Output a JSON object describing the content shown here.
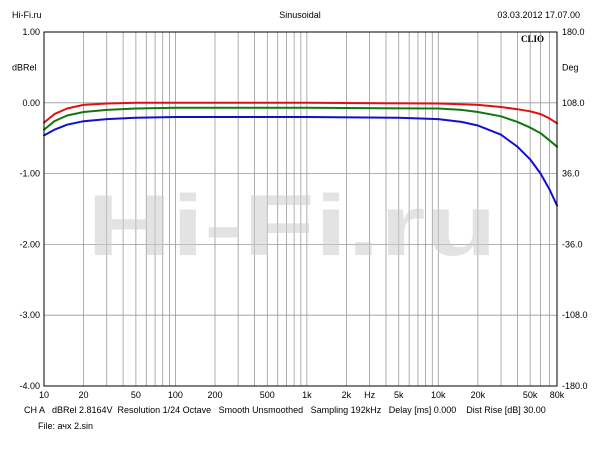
{
  "header": {
    "left": "Hi-Fi.ru",
    "center": "Sinusoidal",
    "right": "03.03.2012 17.07.00"
  },
  "brand": "CLIO",
  "footer": {
    "line1": "CH A   dBRel 2.8164V  Resolution 1/24 Octave   Smooth Unsmoothed   Sampling 192kHz   Delay [ms] 0.000    Dist Rise [dB] 30.00",
    "line2": "File: ачх 2.sin"
  },
  "watermark": "Hi-Fi.ru",
  "chart_data": {
    "type": "line",
    "x_scale": "log",
    "xlim": [
      10,
      80000
    ],
    "ylim": [
      -4.0,
      1.0
    ],
    "y2lim": [
      -180.0,
      180.0
    ],
    "ylabel": "dBRel",
    "y2label": "Deg",
    "xlabel": "Hz",
    "grid": true,
    "x_ticks": [
      {
        "v": 10,
        "label": "10"
      },
      {
        "v": 20,
        "label": "20"
      },
      {
        "v": 50,
        "label": "50"
      },
      {
        "v": 100,
        "label": "100"
      },
      {
        "v": 200,
        "label": "200"
      },
      {
        "v": 500,
        "label": "500"
      },
      {
        "v": 1000,
        "label": "1k"
      },
      {
        "v": 2000,
        "label": "2k"
      },
      {
        "v": 3000,
        "label": "Hz"
      },
      {
        "v": 5000,
        "label": "5k"
      },
      {
        "v": 10000,
        "label": "10k"
      },
      {
        "v": 20000,
        "label": "20k"
      },
      {
        "v": 50000,
        "label": "50k"
      },
      {
        "v": 80000,
        "label": "80k"
      }
    ],
    "y_ticks": [
      {
        "v": 1.0,
        "label": "1.00"
      },
      {
        "v": 0.0,
        "label": "0.00"
      },
      {
        "v": -1.0,
        "label": "-1.00"
      },
      {
        "v": -2.0,
        "label": "-2.00"
      },
      {
        "v": -3.0,
        "label": "-3.00"
      },
      {
        "v": -4.0,
        "label": "-4.00"
      }
    ],
    "y2_ticks": [
      {
        "v": 180.0,
        "label": "180.0"
      },
      {
        "v": 108.0,
        "label": "108.0"
      },
      {
        "v": 36.0,
        "label": "36.0"
      },
      {
        "v": -36.0,
        "label": "-36.0"
      },
      {
        "v": -108.0,
        "label": "-108.0"
      },
      {
        "v": -180.0,
        "label": "-180.0"
      }
    ],
    "series": [
      {
        "color": "#dd1111",
        "points": [
          [
            10,
            -0.28
          ],
          [
            12,
            -0.16
          ],
          [
            15,
            -0.08
          ],
          [
            20,
            -0.03
          ],
          [
            30,
            -0.01
          ],
          [
            50,
            0.0
          ],
          [
            100,
            0.0
          ],
          [
            1000,
            0.0
          ],
          [
            10000,
            -0.01
          ],
          [
            15000,
            -0.02
          ],
          [
            20000,
            -0.03
          ],
          [
            30000,
            -0.06
          ],
          [
            40000,
            -0.09
          ],
          [
            50000,
            -0.12
          ],
          [
            60000,
            -0.16
          ],
          [
            70000,
            -0.22
          ],
          [
            80000,
            -0.29
          ]
        ]
      },
      {
        "color": "#117711",
        "points": [
          [
            10,
            -0.38
          ],
          [
            12,
            -0.26
          ],
          [
            15,
            -0.18
          ],
          [
            20,
            -0.13
          ],
          [
            30,
            -0.1
          ],
          [
            50,
            -0.08
          ],
          [
            100,
            -0.07
          ],
          [
            1000,
            -0.07
          ],
          [
            10000,
            -0.08
          ],
          [
            15000,
            -0.1
          ],
          [
            20000,
            -0.13
          ],
          [
            30000,
            -0.19
          ],
          [
            40000,
            -0.27
          ],
          [
            50000,
            -0.35
          ],
          [
            60000,
            -0.43
          ],
          [
            70000,
            -0.53
          ],
          [
            80000,
            -0.62
          ]
        ]
      },
      {
        "color": "#1111cc",
        "points": [
          [
            10,
            -0.46
          ],
          [
            12,
            -0.38
          ],
          [
            15,
            -0.31
          ],
          [
            20,
            -0.26
          ],
          [
            30,
            -0.23
          ],
          [
            50,
            -0.21
          ],
          [
            100,
            -0.2
          ],
          [
            1000,
            -0.2
          ],
          [
            5000,
            -0.21
          ],
          [
            10000,
            -0.23
          ],
          [
            15000,
            -0.27
          ],
          [
            20000,
            -0.32
          ],
          [
            30000,
            -0.45
          ],
          [
            40000,
            -0.62
          ],
          [
            50000,
            -0.8
          ],
          [
            60000,
            -1.0
          ],
          [
            70000,
            -1.22
          ],
          [
            80000,
            -1.45
          ]
        ]
      }
    ]
  }
}
